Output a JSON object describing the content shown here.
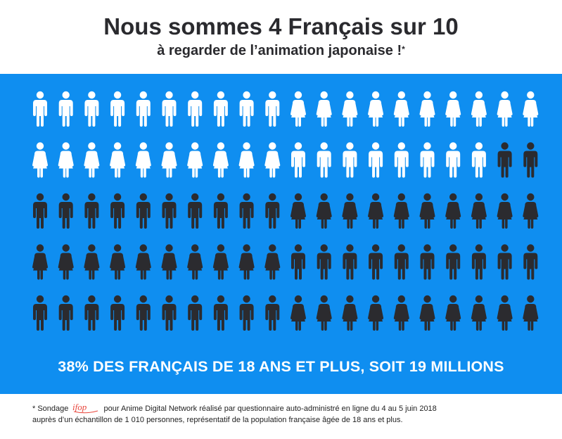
{
  "header": {
    "title": "Nous sommes 4 Français sur 10",
    "subtitle": "à regarder de l’animation japonaise !",
    "subtitle_mark": "*"
  },
  "chart_data": {
    "type": "pictogram",
    "total_icons": 100,
    "highlighted_icons": 38,
    "columns": 20,
    "rows": 5,
    "highlight_color": "#ffffff",
    "base_color": "#2b2b2f",
    "background_color": "#0f8ef0",
    "statement": "38% DES FRANÇAIS DE 18 ANS ET PLUS, SOIT 19 MILLIONS",
    "icon_rows": [
      [
        "male",
        "male",
        "male",
        "male",
        "male",
        "male",
        "male",
        "male",
        "male",
        "male",
        "female",
        "female",
        "female",
        "female",
        "female",
        "female",
        "female",
        "female",
        "female",
        "female"
      ],
      [
        "female",
        "female",
        "female",
        "female",
        "female",
        "female",
        "female",
        "female",
        "female",
        "female",
        "male",
        "male",
        "male",
        "male",
        "male",
        "male",
        "male",
        "male",
        "male",
        "male"
      ],
      [
        "male",
        "male",
        "male",
        "male",
        "male",
        "male",
        "male",
        "male",
        "male",
        "male",
        "female",
        "female",
        "female",
        "female",
        "female",
        "female",
        "female",
        "female",
        "female",
        "female"
      ],
      [
        "female",
        "female",
        "female",
        "female",
        "female",
        "female",
        "female",
        "female",
        "female",
        "female",
        "male",
        "male",
        "male",
        "male",
        "male",
        "male",
        "male",
        "male",
        "male",
        "male"
      ],
      [
        "male",
        "male",
        "male",
        "male",
        "male",
        "male",
        "male",
        "male",
        "male",
        "male",
        "female",
        "female",
        "female",
        "female",
        "female",
        "female",
        "female",
        "female",
        "female",
        "female"
      ]
    ]
  },
  "footnote": {
    "prefix": "* Sondage",
    "logo_text": "ifop",
    "line1": "pour Anime Digital Network réalisé par questionnaire auto-administré en ligne du 4 au 5 juin 2018",
    "line2": "auprès d’un échantillon de 1 010 personnes, représentatif de la population française âgée de 18 ans et plus."
  },
  "colors": {
    "title": "#2a2a2e",
    "logo": "#e8463c"
  }
}
